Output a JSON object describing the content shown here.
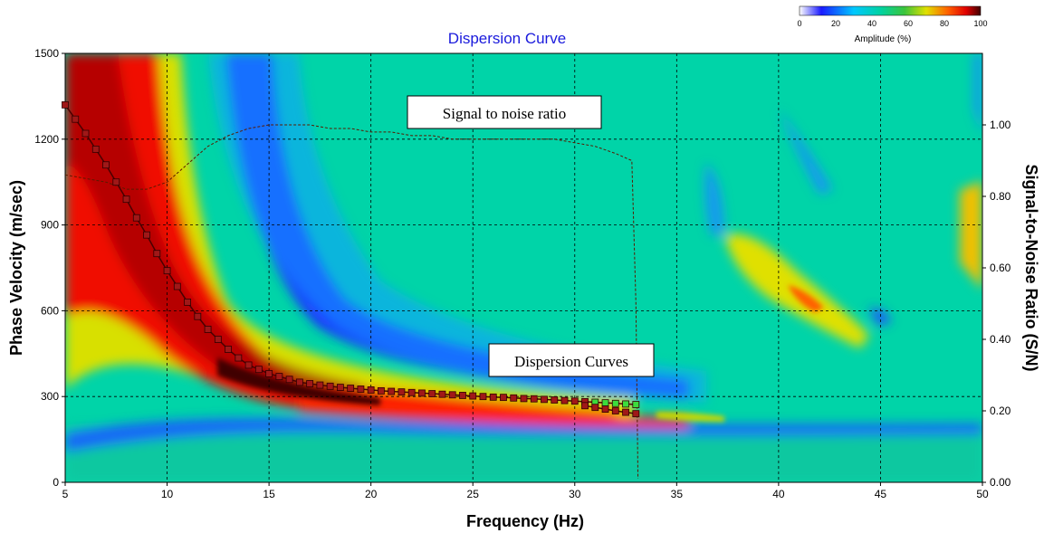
{
  "chart_data": {
    "type": "heatmap",
    "title": "Dispersion Curve",
    "xlabel": "Frequency (Hz)",
    "ylabel": "Phase Velocity (m/sec)",
    "y2label": "Signal-to-Noise Ratio (S/N)",
    "xlim": [
      5,
      50
    ],
    "ylim": [
      0,
      1500
    ],
    "y2lim": [
      0,
      1.2
    ],
    "x_ticks": [
      "5",
      "10",
      "15",
      "20",
      "25",
      "30",
      "35",
      "40",
      "45",
      "50"
    ],
    "y_ticks": [
      "0",
      "300",
      "600",
      "900",
      "1200",
      "1500"
    ],
    "y2_ticks": [
      "0.00",
      "0.20",
      "0.40",
      "0.60",
      "0.80",
      "1.00"
    ],
    "grid": true,
    "colorbar": {
      "label": "Amplitude (%)",
      "ticks": [
        "0",
        "20",
        "40",
        "60",
        "80",
        "100"
      ],
      "placement": "top-right"
    },
    "annotations": [
      "Signal to noise ratio",
      "Dispersion Curves"
    ],
    "series": [
      {
        "name": "Dispersion Curves",
        "x": [
          5.0,
          5.5,
          6.0,
          6.5,
          7.0,
          7.5,
          8.0,
          8.5,
          9.0,
          9.5,
          10.0,
          10.5,
          11.0,
          11.5,
          12.0,
          12.5,
          13.0,
          13.5,
          14.0,
          14.5,
          15.0,
          15.5,
          16.0,
          16.5,
          17.0,
          17.5,
          18.0,
          18.5,
          19.0,
          19.5,
          20.0,
          20.5,
          21.0,
          21.5,
          22.0,
          22.5,
          23.0,
          23.5,
          24.0,
          24.5,
          25.0,
          25.5,
          26.0,
          26.5,
          27.0,
          27.5,
          28.0,
          28.5,
          29.0,
          29.5,
          30.0,
          30.5,
          31.0,
          31.5,
          32.0,
          32.5,
          33.0
        ],
        "y": [
          1320,
          1270,
          1220,
          1165,
          1110,
          1050,
          990,
          925,
          865,
          800,
          740,
          685,
          630,
          580,
          535,
          500,
          465,
          435,
          410,
          395,
          380,
          370,
          360,
          350,
          345,
          340,
          336,
          332,
          329,
          326,
          323,
          320,
          318,
          316,
          314,
          312,
          310,
          308,
          306,
          304,
          302,
          300,
          298,
          297,
          295,
          293,
          292,
          290,
          288,
          286,
          284,
          282,
          280,
          278,
          276,
          274,
          272
        ]
      },
      {
        "name": "Dispersion Curves (lower)",
        "x": [
          30.5,
          31.0,
          31.5,
          32.0,
          32.5,
          33.0
        ],
        "y": [
          268,
          262,
          256,
          250,
          245,
          240
        ]
      },
      {
        "name": "Signal to noise ratio",
        "x": [
          5,
          6,
          7,
          8,
          9,
          10,
          11,
          12,
          13,
          14,
          15,
          16,
          17,
          18,
          19,
          20,
          21,
          22,
          23,
          24,
          25,
          26,
          27,
          28,
          29,
          30,
          31,
          32,
          32.8,
          33.0,
          33.1
        ],
        "y": [
          0.86,
          0.85,
          0.84,
          0.82,
          0.82,
          0.84,
          0.89,
          0.94,
          0.97,
          0.99,
          1.0,
          1.0,
          1.0,
          0.99,
          0.99,
          0.98,
          0.98,
          0.97,
          0.97,
          0.96,
          0.96,
          0.96,
          0.96,
          0.96,
          0.96,
          0.95,
          0.94,
          0.92,
          0.9,
          0.5,
          0.01
        ]
      }
    ]
  }
}
